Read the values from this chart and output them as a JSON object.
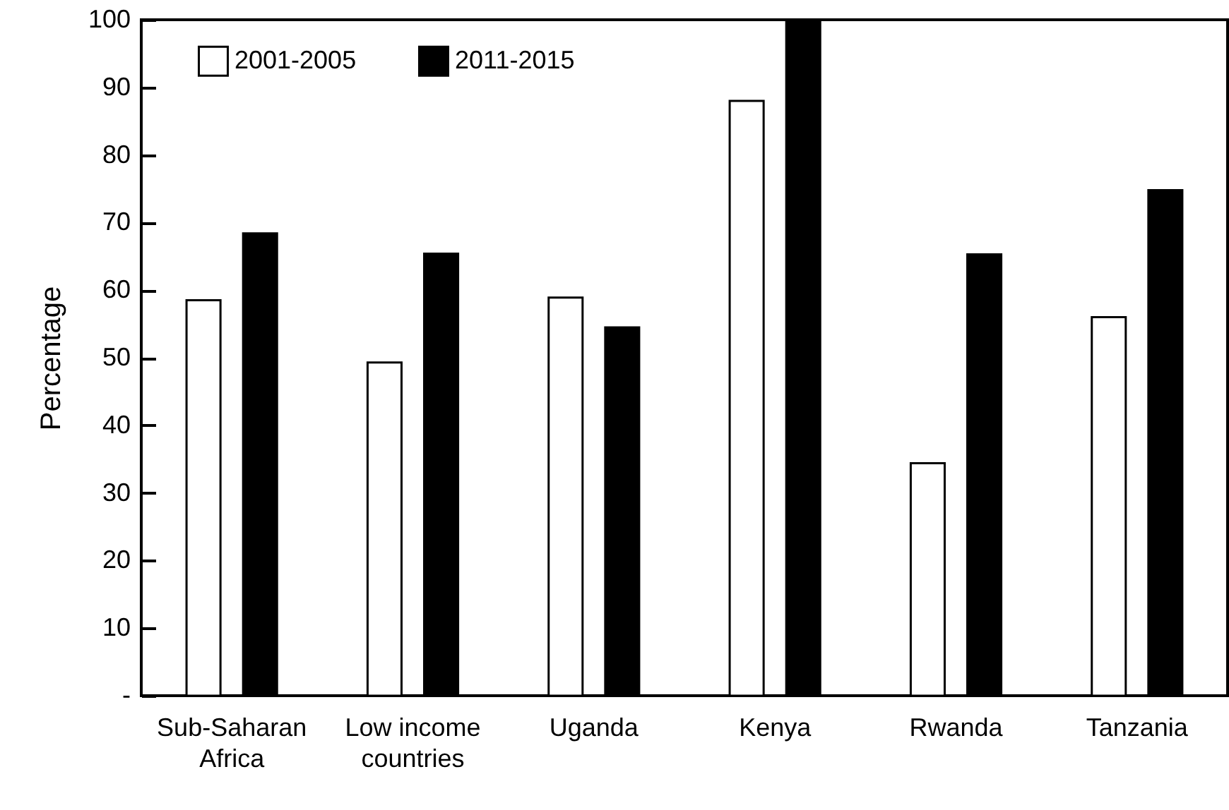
{
  "chart_data": {
    "type": "bar",
    "ylabel": "Percentage",
    "categories": [
      "Sub-Saharan Africa",
      "Low income countries",
      "Uganda",
      "Kenya",
      "Rwanda",
      "Tanzania"
    ],
    "series": [
      {
        "name": "2001-2005",
        "color": "#ffffff",
        "values": [
          58.5,
          49.3,
          58.9,
          88.0,
          34.4,
          56.0
        ]
      },
      {
        "name": "2011-2015",
        "color": "#000000",
        "values": [
          68.4,
          65.4,
          54.5,
          100,
          65.3,
          74.8
        ]
      }
    ],
    "ylim": [
      0,
      100
    ],
    "yticks": [
      {
        "value": 0,
        "label": "-"
      },
      10,
      20,
      30,
      40,
      50,
      60,
      70,
      80,
      90,
      100
    ],
    "grid": false,
    "legend": "top left"
  }
}
